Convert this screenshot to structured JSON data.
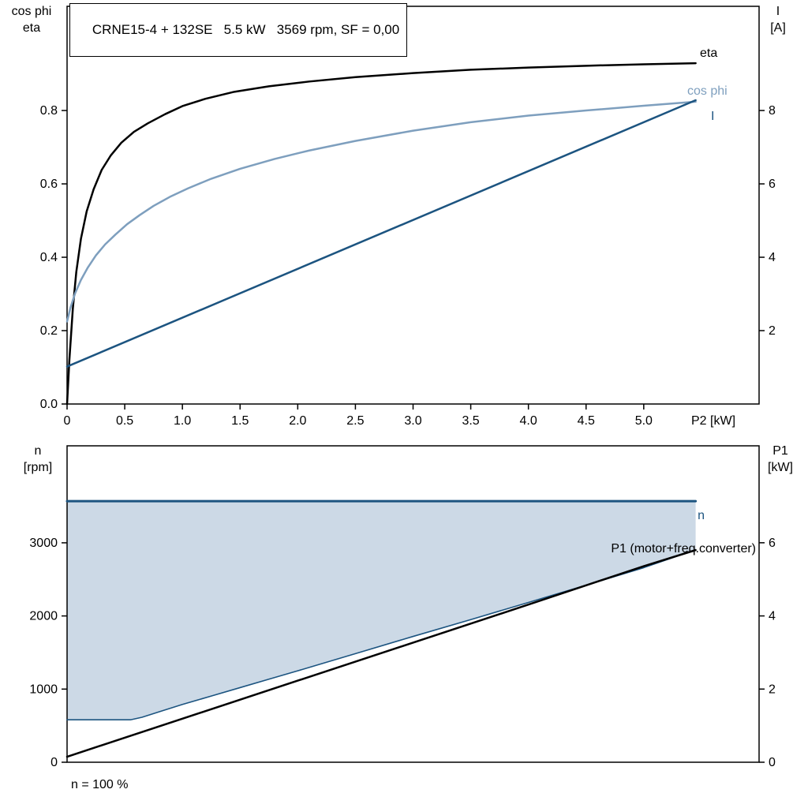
{
  "header": {
    "title": "CRNE15-4 + 132SE   5.5 kW   3569 rpm, SF = 0,00"
  },
  "annotations": {
    "speed_note": "n = 100 %"
  },
  "colors": {
    "frame": "#000000",
    "black": "#000000",
    "dark_blue": "#1c5480",
    "light_blue": "#7e9fbe",
    "area_fill": "#ccd9e6"
  },
  "chart_data": [
    {
      "type": "line",
      "title": "CRNE15-4 + 132SE   5.5 kW   3569 rpm, SF = 0,00",
      "xlabel": "P2 [kW]",
      "xlim": [
        0,
        6.0
      ],
      "grid": false,
      "legend_position": "inline-right",
      "x_ticks": [
        {
          "v": 0,
          "label": "0"
        },
        {
          "v": 0.5,
          "label": "0.5"
        },
        {
          "v": 1,
          "label": "1.0"
        },
        {
          "v": 1.5,
          "label": "1.5"
        },
        {
          "v": 2,
          "label": "2.0"
        },
        {
          "v": 2.5,
          "label": "2.5"
        },
        {
          "v": 3,
          "label": "3.0"
        },
        {
          "v": 3.5,
          "label": "3.5"
        },
        {
          "v": 4,
          "label": "4.0"
        },
        {
          "v": 4.5,
          "label": "4.5"
        },
        {
          "v": 5,
          "label": "5.0"
        }
      ],
      "left_axis": {
        "title_lines": [
          "cos phi",
          "eta"
        ],
        "lim": [
          0,
          1.084
        ],
        "ticks": [
          {
            "v": 0,
            "label": "0.0"
          },
          {
            "v": 0.2,
            "label": "0.2"
          },
          {
            "v": 0.4,
            "label": "0.4"
          },
          {
            "v": 0.6,
            "label": "0.6"
          },
          {
            "v": 0.8,
            "label": "0.8"
          }
        ]
      },
      "right_axis": {
        "title_lines": [
          "I",
          "[A]"
        ],
        "lim": [
          0,
          10.84
        ],
        "ticks": [
          {
            "v": 2,
            "label": "2"
          },
          {
            "v": 4,
            "label": "4"
          },
          {
            "v": 6,
            "label": "6"
          },
          {
            "v": 8,
            "label": "8"
          }
        ]
      },
      "series": [
        {
          "name": "eta",
          "label": "eta",
          "axis": "left",
          "color": "#000000",
          "width": 2.5,
          "x": [
            0,
            0.02,
            0.05,
            0.08,
            0.12,
            0.17,
            0.23,
            0.3,
            0.38,
            0.47,
            0.58,
            0.7,
            0.85,
            1.0,
            1.2,
            1.45,
            1.75,
            2.1,
            2.5,
            3.0,
            3.5,
            4.0,
            4.5,
            5.0,
            5.45
          ],
          "y": [
            0.0,
            0.12,
            0.26,
            0.36,
            0.45,
            0.525,
            0.585,
            0.638,
            0.678,
            0.712,
            0.742,
            0.765,
            0.79,
            0.812,
            0.832,
            0.851,
            0.866,
            0.879,
            0.891,
            0.902,
            0.911,
            0.917,
            0.922,
            0.926,
            0.929
          ]
        },
        {
          "name": "cos phi",
          "label": "cos phi",
          "axis": "left",
          "color": "#7e9fbe",
          "width": 2.5,
          "x": [
            0,
            0.03,
            0.07,
            0.12,
            0.18,
            0.25,
            0.33,
            0.42,
            0.52,
            0.63,
            0.75,
            0.9,
            1.05,
            1.25,
            1.5,
            1.8,
            2.1,
            2.5,
            3.0,
            3.5,
            4.0,
            4.5,
            5.0,
            5.45
          ],
          "y": [
            0.225,
            0.263,
            0.302,
            0.338,
            0.372,
            0.405,
            0.435,
            0.462,
            0.49,
            0.515,
            0.54,
            0.566,
            0.588,
            0.614,
            0.641,
            0.668,
            0.691,
            0.717,
            0.745,
            0.768,
            0.786,
            0.8,
            0.813,
            0.824
          ]
        },
        {
          "name": "I",
          "label": "I",
          "axis": "right",
          "color": "#1c5480",
          "width": 2.5,
          "x": [
            0,
            5.45
          ],
          "y": [
            1.02,
            8.28
          ]
        }
      ]
    },
    {
      "type": "line-area",
      "title": "",
      "xlabel": "",
      "xlim": [
        0,
        6.0
      ],
      "grid": false,
      "x_ticks": [],
      "left_axis": {
        "title_lines": [
          "n",
          "[rpm]"
        ],
        "lim": [
          0,
          4326
        ],
        "ticks": [
          {
            "v": 0,
            "label": "0"
          },
          {
            "v": 1000,
            "label": "1000"
          },
          {
            "v": 2000,
            "label": "2000"
          },
          {
            "v": 3000,
            "label": "3000"
          }
        ]
      },
      "right_axis": {
        "title_lines": [
          "P1",
          "[kW]"
        ],
        "lim": [
          0,
          8.65
        ],
        "ticks": [
          {
            "v": 0,
            "label": "0"
          },
          {
            "v": 2,
            "label": "2"
          },
          {
            "v": 4,
            "label": "4"
          },
          {
            "v": 6,
            "label": "6"
          }
        ]
      },
      "series": [
        {
          "name": "n",
          "label": "n",
          "axis": "left",
          "color": "#1c5480",
          "width": 3,
          "x": [
            0,
            5.45
          ],
          "y": [
            3569,
            3569
          ]
        },
        {
          "name": "n-range-lower",
          "label": "",
          "axis": "left",
          "color": "#1c5480",
          "width": 1.6,
          "x": [
            0,
            0.55,
            0.65,
            0.8,
            1.0,
            1.25,
            1.5,
            1.75,
            2.0,
            2.5,
            3.0,
            3.5,
            4.0,
            4.5,
            5.0,
            5.45
          ],
          "y": [
            580,
            580,
            615,
            690,
            790,
            905,
            1020,
            1135,
            1250,
            1485,
            1720,
            1950,
            2185,
            2420,
            2660,
            2905
          ]
        },
        {
          "name": "P1 (motor+freq.converter)",
          "label": "P1 (motor+freq.converter)",
          "axis": "right",
          "color": "#000000",
          "width": 2.5,
          "x": [
            0,
            1.0,
            2.0,
            3.0,
            4.0,
            5.0,
            5.45
          ],
          "y": [
            0.15,
            1.19,
            2.23,
            3.27,
            4.31,
            5.36,
            5.8
          ]
        }
      ],
      "area": {
        "top": "n",
        "bottom": "n-range-lower",
        "fill": "#ccd9e6"
      },
      "annotation": "n = 100 %"
    }
  ]
}
